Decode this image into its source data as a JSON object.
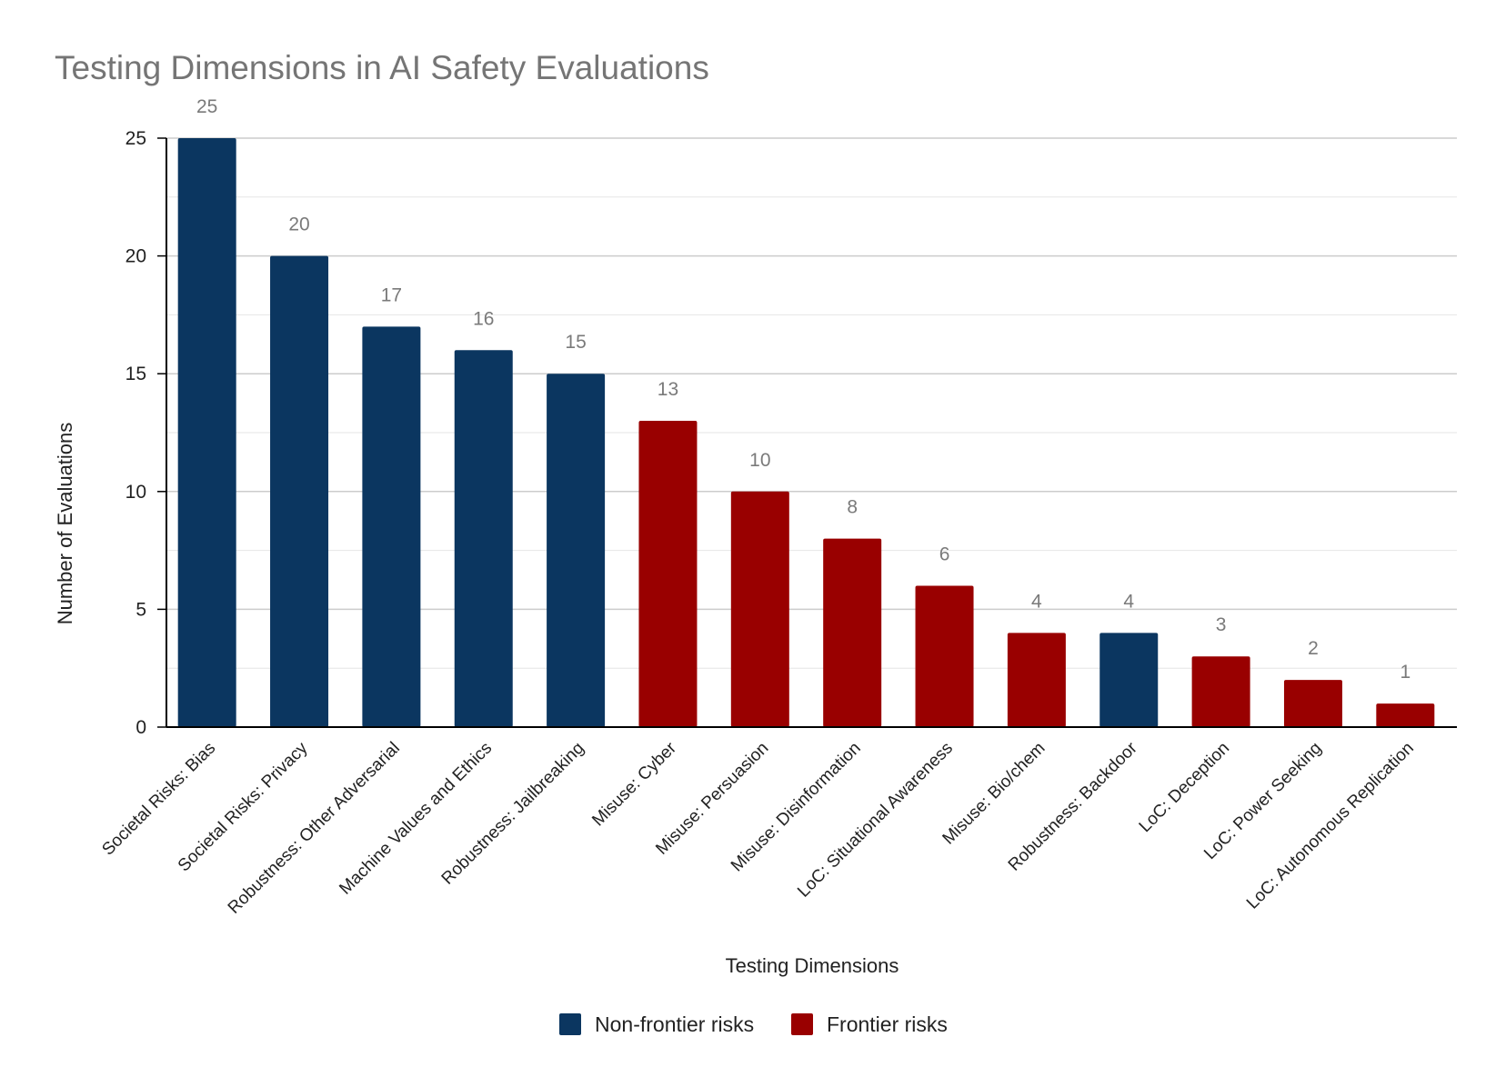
{
  "chart_data": {
    "type": "bar",
    "title": "Testing Dimensions in AI Safety Evaluations",
    "xlabel": "Testing Dimensions",
    "ylabel": "Number of Evaluations",
    "ylim": [
      0,
      25
    ],
    "yticks": [
      "0",
      "5",
      "10",
      "15",
      "20",
      "25"
    ],
    "grid": true,
    "legend_position": "bottom",
    "categories": [
      "Societal Risks: Bias",
      "Societal Risks: Privacy",
      "Robustness: Other Adversarial",
      "Machine Values and Ethics",
      "Robustness: Jailbreaking",
      "Misuse: Cyber",
      "Misuse: Persuasion",
      "Misuse: Disinformation",
      "LoC: Situational Awareness",
      "Misuse: Bio/chem",
      "Robustness: Backdoor",
      "LoC: Deception",
      "LoC: Power Seeking",
      "LoC: Autonomous Replication"
    ],
    "values": [
      25,
      20,
      17,
      16,
      15,
      13,
      10,
      8,
      6,
      4,
      4,
      3,
      2,
      1
    ],
    "groups": [
      "Non-frontier risks",
      "Non-frontier risks",
      "Non-frontier risks",
      "Non-frontier risks",
      "Non-frontier risks",
      "Frontier risks",
      "Frontier risks",
      "Frontier risks",
      "Frontier risks",
      "Frontier risks",
      "Non-frontier risks",
      "Frontier risks",
      "Frontier risks",
      "Frontier risks"
    ],
    "series": [
      {
        "name": "Non-frontier risks",
        "color": "#0b3660"
      },
      {
        "name": "Frontier risks",
        "color": "#990000"
      }
    ],
    "colors": {
      "grid": "#cccccc",
      "minor_grid": "#e6e6e6",
      "axis": "#000000",
      "tick_text": "#222222",
      "data_label": "#7a7a7a",
      "title": "#757575"
    }
  }
}
